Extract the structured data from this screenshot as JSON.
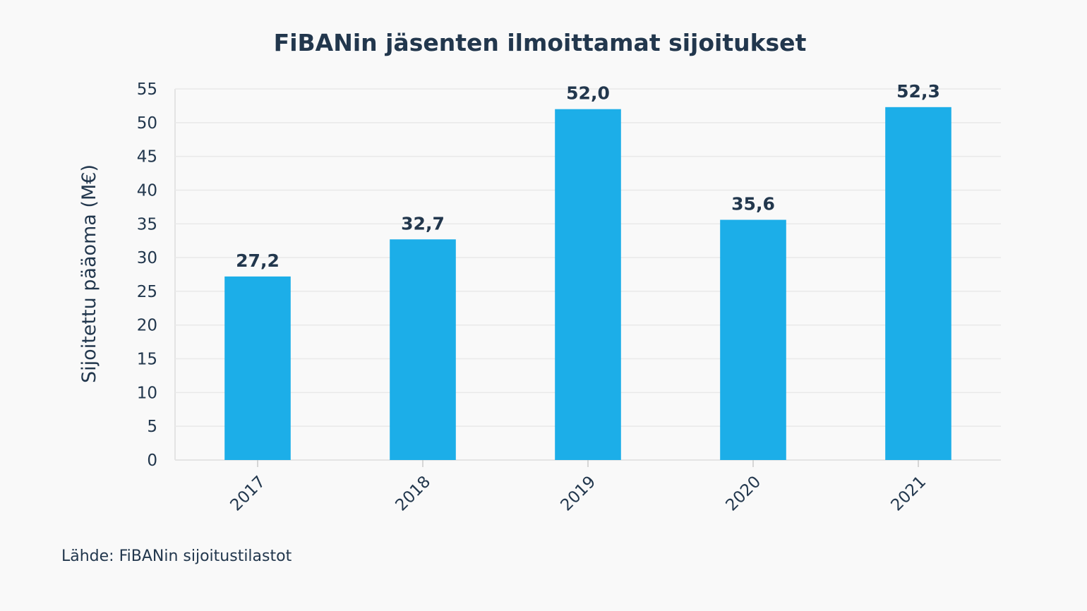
{
  "chart_data": {
    "type": "bar",
    "title": "FiBANin jäsenten ilmoittamat sijoitukset",
    "ylabel": "Sijoitettu pääoma (M€)",
    "xlabel": "",
    "categories": [
      "2017",
      "2018",
      "2019",
      "2020",
      "2021"
    ],
    "values": [
      27.2,
      32.7,
      52.0,
      35.6,
      52.3
    ],
    "value_labels": [
      "27,2",
      "32,7",
      "52,0",
      "35,6",
      "52,3"
    ],
    "ylim": [
      0,
      55
    ],
    "yticks": [
      0,
      5,
      10,
      15,
      20,
      25,
      30,
      35,
      40,
      45,
      50,
      55
    ],
    "grid": true,
    "bar_color": "#1caee8",
    "text_color": "#22374d",
    "source": "Lähde: FiBANin sijoitustilastot"
  }
}
